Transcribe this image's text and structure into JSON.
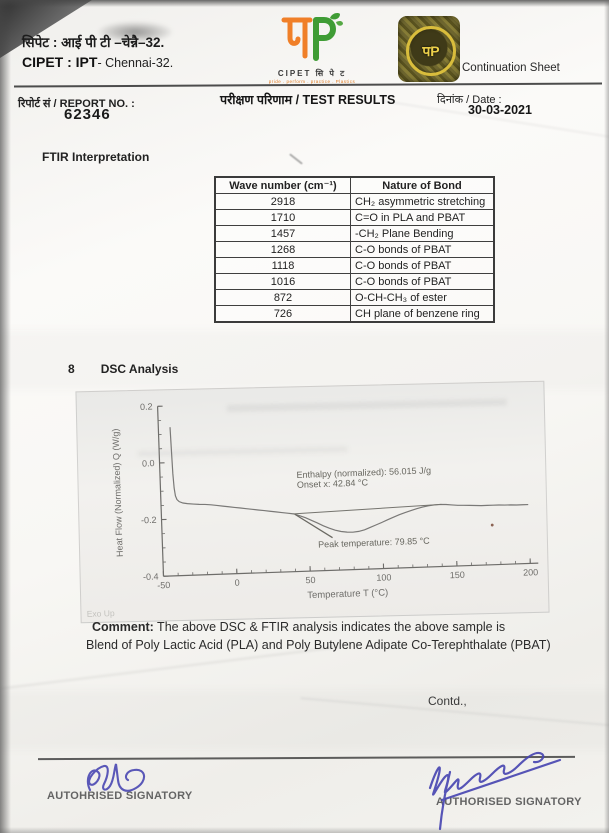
{
  "page": {
    "header": {
      "org_hindi": "सिपेट : आई पी टी –चेन्नै–32.",
      "org_english_bold": "CIPET : IPT",
      "org_english_rest": "- Chennai-32.",
      "logo": {
        "caption": "CIPET सि पे ट",
        "tagline": "pride . perform . practice . Plastics"
      },
      "seal_glyph": "पP",
      "continuation_label": "Continuation Sheet"
    },
    "report_row": {
      "report_no_label": "रिपोर्ट सं / REPORT NO. :",
      "report_no": "62346",
      "title": "परीक्षण परिणाम  / TEST RESULTS",
      "date_label": "दिनांक  / Date :",
      "date": "30-03-2021"
    },
    "ftir": {
      "heading": "FTIR Interpretation",
      "table": {
        "headers": [
          "Wave number (cm⁻¹)",
          "Nature of Bond"
        ],
        "rows": [
          [
            "2918",
            "CH₂ asymmetric stretching"
          ],
          [
            "1710",
            "C=O in PLA and PBAT"
          ],
          [
            "1457",
            "-CH₂ Plane Bending"
          ],
          [
            "1268",
            "C-O bonds of PBAT"
          ],
          [
            "1118",
            "C-O bonds of PBAT"
          ],
          [
            "1016",
            "C-O bonds of PBAT"
          ],
          [
            "872",
            "O-CH-CH₃ of ester"
          ],
          [
            "726",
            "CH plane of benzene ring"
          ]
        ]
      }
    },
    "dsc": {
      "section_number": "8",
      "heading": "DSC Analysis"
    },
    "comment": {
      "label": "Comment:",
      "line1_rest": " The above DSC & FTIR analysis indicates the above sample is",
      "line2": "Blend of Poly Lactic Acid (PLA) and Poly Butylene Adipate Co-Terephthalate (PBAT)"
    },
    "contd": "Contd.,",
    "signatures": {
      "left_label": "AUTOHRISED SIGNATORY",
      "right_label": "AUTHORISED SIGNATORY"
    }
  },
  "chart_data": {
    "type": "line",
    "title": "",
    "xlabel": "Temperature T (°C)",
    "ylabel": "Heat Flow (Normalized)  Q  (W/g)",
    "xlim": [
      -50,
      200
    ],
    "ylim": [
      -0.4,
      0.2
    ],
    "x_ticks": [
      -50,
      0,
      50,
      100,
      150,
      200
    ],
    "x_tick_labels": [
      "-50",
      "0",
      "50",
      "100",
      "150",
      "200"
    ],
    "y_ticks": [
      0.2,
      0.0,
      -0.2,
      -0.4
    ],
    "y_tick_labels": [
      "0.2",
      "0.0",
      "-0.2",
      "-0.4"
    ],
    "grid": false,
    "exo_label": "Exo Up",
    "annotations": [
      {
        "text": "Enthalpy (normalized): 56.015 J/g",
        "x": 43,
        "y": -0.07
      },
      {
        "text": "Onset x: 42.84 °C",
        "x": 43,
        "y": -0.105
      },
      {
        "text": "Peak temperature: 79.85 °C",
        "x": 56,
        "y": -0.318
      }
    ],
    "baseline": {
      "x1": 40,
      "y1": -0.196,
      "x2": 141,
      "y2": -0.181
    },
    "tangent": {
      "x1": 41,
      "y1": -0.198,
      "x2": 66,
      "y2": -0.285
    },
    "artifact_dot": {
      "x": 175,
      "y": -0.26
    },
    "series": [
      {
        "name": "DSC heat flow",
        "points": [
          [
            -42,
            0.125
          ],
          [
            -41.6,
            0.04
          ],
          [
            -41.2,
            -0.04
          ],
          [
            -40.7,
            -0.09
          ],
          [
            -40,
            -0.118
          ],
          [
            -39,
            -0.131
          ],
          [
            -37.5,
            -0.139
          ],
          [
            -35,
            -0.144
          ],
          [
            -32,
            -0.147
          ],
          [
            -28,
            -0.149
          ],
          [
            -24,
            -0.151
          ],
          [
            -20,
            -0.152
          ],
          [
            -16,
            -0.154
          ],
          [
            -12,
            -0.157
          ],
          [
            -8,
            -0.16
          ],
          [
            -4,
            -0.163
          ],
          [
            0,
            -0.166
          ],
          [
            4,
            -0.169
          ],
          [
            8,
            -0.172
          ],
          [
            12,
            -0.175
          ],
          [
            16,
            -0.178
          ],
          [
            20,
            -0.181
          ],
          [
            24,
            -0.184
          ],
          [
            28,
            -0.187
          ],
          [
            32,
            -0.19
          ],
          [
            36,
            -0.193
          ],
          [
            40,
            -0.196
          ],
          [
            44,
            -0.203
          ],
          [
            48,
            -0.211
          ],
          [
            52,
            -0.221
          ],
          [
            56,
            -0.231
          ],
          [
            60,
            -0.242
          ],
          [
            64,
            -0.251
          ],
          [
            68,
            -0.259
          ],
          [
            72,
            -0.264
          ],
          [
            76,
            -0.267
          ],
          [
            80,
            -0.268
          ],
          [
            84,
            -0.266
          ],
          [
            88,
            -0.261
          ],
          [
            92,
            -0.253
          ],
          [
            96,
            -0.245
          ],
          [
            100,
            -0.237
          ],
          [
            104,
            -0.228
          ],
          [
            108,
            -0.22
          ],
          [
            112,
            -0.212
          ],
          [
            116,
            -0.205
          ],
          [
            120,
            -0.199
          ],
          [
            124,
            -0.193
          ],
          [
            128,
            -0.188
          ],
          [
            132,
            -0.184
          ],
          [
            136,
            -0.182
          ],
          [
            140,
            -0.181
          ],
          [
            144,
            -0.182
          ],
          [
            148,
            -0.184
          ],
          [
            152,
            -0.186
          ],
          [
            156,
            -0.187
          ],
          [
            160,
            -0.188
          ],
          [
            164,
            -0.189
          ],
          [
            168,
            -0.19
          ],
          [
            172,
            -0.19
          ],
          [
            176,
            -0.19
          ],
          [
            180,
            -0.19
          ],
          [
            184,
            -0.191
          ],
          [
            188,
            -0.191
          ],
          [
            192,
            -0.192
          ],
          [
            196,
            -0.192
          ],
          [
            200,
            -0.192
          ]
        ]
      }
    ]
  },
  "colors": {
    "accent_orange": "#f07f28",
    "accent_green": "#3f9c35",
    "seal_gold": "#d9bd3c",
    "signature_ink": "#4947b2",
    "rule_dark": "#4c4c4c",
    "chart_ink": "#7a7977"
  }
}
